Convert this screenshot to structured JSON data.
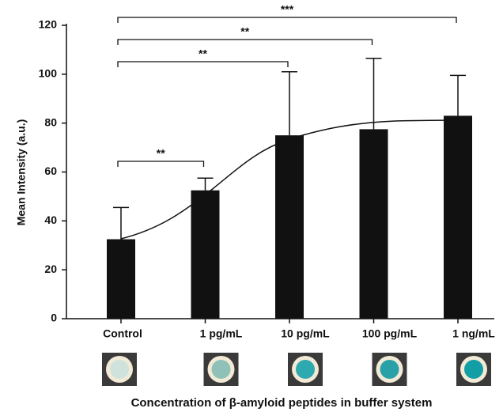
{
  "chart_data": {
    "type": "bar",
    "y_label": "Mean Intensity (a.u.)",
    "x_label": "Concentration of β-amyloid peptides in buffer system",
    "categories": [
      "Control",
      "1 pg/mL",
      "10 pg/mL",
      "100 pg/mL",
      "1 ng/mL"
    ],
    "values": [
      32.5,
      52.5,
      75,
      77.5,
      83
    ],
    "errors": [
      13,
      5,
      26,
      29,
      16.5
    ],
    "color": "#111111",
    "ylim": [
      0,
      120
    ],
    "yticks": [
      0,
      20,
      40,
      60,
      80,
      100,
      120
    ],
    "annotations": [
      "**",
      "**",
      "**",
      "***"
    ]
  }
}
